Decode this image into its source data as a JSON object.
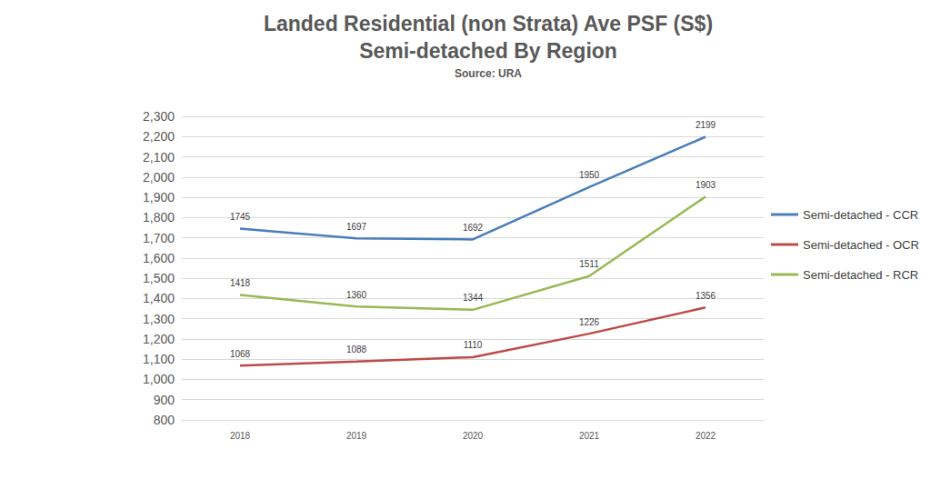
{
  "chart_data": {
    "type": "line",
    "title": "Landed Residential (non Strata) Ave PSF (S$)\nSemi-detached By Region",
    "subtitle": "Source: URA",
    "categories": [
      "2018",
      "2019",
      "2020",
      "2021",
      "2022"
    ],
    "series": [
      {
        "name": "Semi-detached - CCR",
        "color": "#4a7ebb",
        "values": [
          1745,
          1697,
          1692,
          1950,
          2199
        ]
      },
      {
        "name": "Semi-detached - OCR",
        "color": "#be4b48",
        "values": [
          1068,
          1088,
          1110,
          1226,
          1356
        ]
      },
      {
        "name": "Semi-detached - RCR",
        "color": "#98b954",
        "values": [
          1418,
          1360,
          1344,
          1511,
          1903
        ]
      }
    ],
    "ylim": [
      800,
      2300
    ],
    "yticks": [
      800,
      900,
      1000,
      1100,
      1200,
      1300,
      1400,
      1500,
      1600,
      1700,
      1800,
      1900,
      2000,
      2100,
      2200,
      2300
    ],
    "grid": true,
    "legend": "right",
    "data_labels": true,
    "marker": "none",
    "line_style": "solid"
  }
}
